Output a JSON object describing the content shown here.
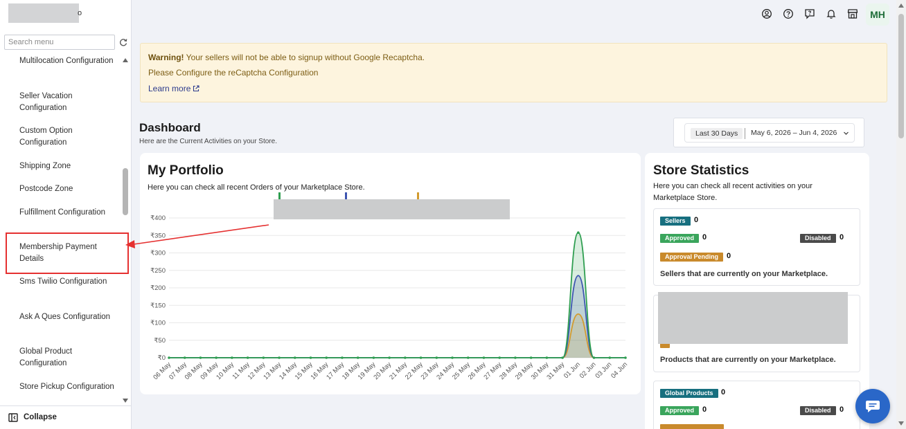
{
  "sidebar": {
    "logo_tail": "o",
    "search_placeholder": "Search menu",
    "items": [
      {
        "label": "Multilocation Configuration"
      },
      {
        "label": "Seller Vacation Configuration"
      },
      {
        "label": "Custom Option Configuration"
      },
      {
        "label": "Shipping Zone"
      },
      {
        "label": "Postcode Zone"
      },
      {
        "label": "Fulfillment Configuration"
      },
      {
        "label": "Membership Payment Details"
      },
      {
        "label": "Sms Twilio Configuration"
      },
      {
        "label": "Ask A Ques Configuration"
      },
      {
        "label": "Global Product Configuration"
      },
      {
        "label": "Store Pickup Configuration"
      }
    ],
    "collapse_label": "Collapse"
  },
  "header": {
    "icons": [
      "user-circle-icon",
      "help-circle-icon",
      "feedback-icon",
      "bell-icon",
      "store-icon"
    ],
    "avatar_initials": "MH"
  },
  "warning": {
    "strong": "Warning!",
    "line1": " Your sellers will not be able to signup without Google Recaptcha.",
    "line2": "Please Configure the reCaptcha Configuration",
    "link": "Learn more"
  },
  "dashboard": {
    "title": "Dashboard",
    "subtitle": "Here are the Current Activities on your Store.",
    "range_label": "Last 30 Days",
    "date_range": "May 6, 2026 – Jun 4, 2026"
  },
  "portfolio": {
    "title": "My Portfolio",
    "subtitle": "Here you can check all recent Orders of your Marketplace Store."
  },
  "chart_data": {
    "type": "area",
    "title": "",
    "xlabel": "",
    "ylabel": "",
    "categories": [
      "06 May",
      "07 May",
      "08 May",
      "09 May",
      "10 May",
      "11 May",
      "12 May",
      "13 May",
      "14 May",
      "15 May",
      "16 May",
      "17 May",
      "18 May",
      "19 May",
      "20 May",
      "21 May",
      "22 May",
      "23 May",
      "24 May",
      "25 May",
      "26 May",
      "27 May",
      "28 May",
      "29 May",
      "30 May",
      "31 May",
      "01 Jun",
      "02 Jun",
      "03 Jun",
      "04 Jun"
    ],
    "y_ticks": [
      "₹0",
      "₹50",
      "₹100",
      "₹150",
      "₹200",
      "₹250",
      "₹300",
      "₹350",
      "₹400"
    ],
    "ylim": [
      0,
      400
    ],
    "legend": "top",
    "series": [
      {
        "color": "#2e9e50",
        "values": [
          0,
          0,
          0,
          0,
          0,
          0,
          0,
          0,
          0,
          0,
          0,
          0,
          0,
          0,
          0,
          0,
          0,
          0,
          0,
          0,
          0,
          0,
          0,
          0,
          0,
          0,
          358,
          0,
          0,
          0
        ]
      },
      {
        "color": "#3d55b0",
        "values": [
          0,
          0,
          0,
          0,
          0,
          0,
          0,
          0,
          0,
          0,
          0,
          0,
          0,
          0,
          0,
          0,
          0,
          0,
          0,
          0,
          0,
          0,
          0,
          0,
          0,
          0,
          235,
          0,
          0,
          0
        ]
      },
      {
        "color": "#d29a2e",
        "values": [
          0,
          0,
          0,
          0,
          0,
          0,
          0,
          0,
          0,
          0,
          0,
          0,
          0,
          0,
          0,
          0,
          0,
          0,
          0,
          0,
          0,
          0,
          0,
          0,
          0,
          0,
          125,
          0,
          0,
          0
        ]
      }
    ]
  },
  "stats": {
    "title": "Store Statistics",
    "subtitle": "Here you can check all recent activities on your Marketplace Store.",
    "sellers": {
      "label": "Sellers",
      "count": "0",
      "approved_label": "Approved",
      "approved": "0",
      "disabled_label": "Disabled",
      "disabled": "0",
      "pending_label": "Approval Pending",
      "pending": "0",
      "desc": "Sellers that are currently on your Marketplace."
    },
    "products": {
      "desc": "Products that are currently on your Marketplace."
    },
    "global": {
      "label": "Global Products",
      "count": "0",
      "approved_label": "Approved",
      "approved": "0",
      "disabled_label": "Disabled",
      "disabled": "0"
    }
  }
}
